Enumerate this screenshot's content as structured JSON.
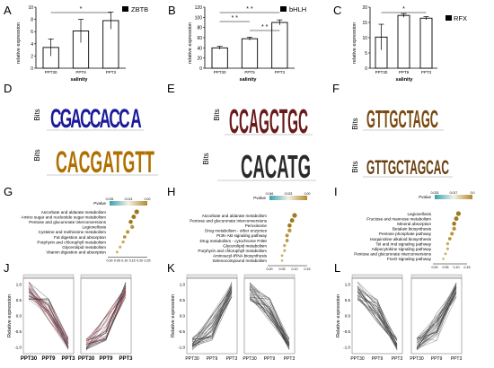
{
  "panels": {
    "A": {
      "letter": "A",
      "gene": "ZBTB",
      "ylabel": "relative expression",
      "xlabel": "salinity",
      "sig": "*",
      "ticks": [
        "0",
        "2",
        "4",
        "6",
        "8",
        "10"
      ],
      "ymax": 10,
      "categories": [
        "PPT30",
        "PPT9",
        "PPT3"
      ],
      "values": [
        3.4,
        6.1,
        7.8
      ],
      "errors": [
        1.4,
        1.9,
        1.4
      ]
    },
    "B": {
      "letter": "B",
      "gene": "bHLH",
      "ylabel": "relative expression",
      "xlabel": "salinity",
      "sig": "* *",
      "ticks": [
        "0",
        "20",
        "40",
        "60",
        "80",
        "100",
        "120"
      ],
      "ymax": 120,
      "categories": [
        "PPT30",
        "PPT9",
        "PPT3"
      ],
      "values": [
        40,
        58,
        90
      ],
      "errors": [
        3,
        3,
        5
      ]
    },
    "C": {
      "letter": "C",
      "gene": "RFX",
      "ylabel": "relative expression",
      "xlabel": "salinity",
      "sig": "*",
      "ticks": [
        "0",
        "5",
        "10",
        "15",
        "20"
      ],
      "ymax": 20,
      "categories": [
        "PPT30",
        "PPT9",
        "PPT3"
      ],
      "values": [
        10.2,
        17.3,
        16.4
      ],
      "errors": [
        4.2,
        0.6,
        0.5
      ]
    },
    "D": {
      "letter": "D",
      "ylabel": "Bits",
      "motif_top": "CGACCACC A",
      "motif_bottom": "CACGATGTT"
    },
    "E": {
      "letter": "E",
      "ylabel": "Bits",
      "motif_top": "CCAGCTGC",
      "motif_bottom": "CACATG"
    },
    "F": {
      "letter": "F",
      "ylabel": "Bits",
      "motif_top": "GTTGCTAGC",
      "motif_bottom": "GTTGCTAGCAC"
    },
    "G": {
      "letter": "G",
      "legend_title": "Pvalue",
      "legend_ticks": [
        "0.025",
        "0.013",
        "0.00"
      ],
      "terms": [
        "Ascorbate and aldarate metabolism",
        "Amino sugar and nucleotide sugar metabolism",
        "Pentose and glucuronate interconversions",
        "Legionellosis",
        "Cysteine and methionine metabolism",
        "Fat digestion and absorption",
        "Porphyrin and chlorophyll metabolism",
        "Glycerolipid metabolism",
        "Vitamin digestion and absorption"
      ],
      "xticks": [
        "0.00",
        "0.05",
        "0.10",
        "0.15",
        "0.20",
        "0.25"
      ]
    },
    "H": {
      "letter": "H",
      "legend_title": "Pvalue",
      "legend_ticks": [
        "0.046",
        "0.023",
        "0.00"
      ],
      "terms": [
        "Ascorbate and aldarate metabolism",
        "Pentose and glucuronate interconversions",
        "Peroxisome",
        "Drug metabolism - other enzymes",
        "PI3K-Akt signaling pathway",
        "Drug metabolism - cytochrome P450",
        "Glycerolipid metabolism",
        "Porphyrin and chlorophyll metabolism",
        "Aminoacyl-tRNA biosynthesis",
        "Selenocompound metabolism"
      ],
      "xticks": [
        "0.00",
        "0.05",
        "0.10",
        "0.15"
      ]
    },
    "I": {
      "letter": "I",
      "legend_title": "Pvalue",
      "legend_ticks": [
        "0.033",
        "0.017",
        "0.0"
      ],
      "terms": [
        "Legionellosis",
        "Fructose and mannose metabolism",
        "Mineral absorption",
        "Betalain biosynthesis",
        "Pentose phosphate pathway",
        "Isoquinoline alkaloid biosynthesis",
        "Tel and Imd signaling pathway",
        "Adipocytokine signaling pathway",
        "Pentose and glucuronate interconversions",
        "FoxO signaling pathway"
      ],
      "xticks": [
        "0.00",
        "0.05",
        "0.10",
        "0.15"
      ]
    },
    "J": {
      "letter": "J",
      "ylabel": "Relative expression",
      "yticks": [
        "1.0",
        "0.5",
        "0.0",
        "-0.5",
        "-1.0"
      ],
      "xticks": [
        "PPT30",
        "PPT9",
        "PPT3"
      ]
    },
    "K": {
      "letter": "K",
      "ylabel": "Relative expression",
      "yticks": [
        "1.0",
        "0.5",
        "0.0",
        "-0.5",
        "-1.0"
      ],
      "xticks": [
        "PPT30",
        "PPT9",
        "PPT3"
      ]
    },
    "L": {
      "letter": "L",
      "ylabel": "Relative expression",
      "yticks": [
        "1.0",
        "0.5",
        "0.0",
        "-0.5",
        "-1.0"
      ],
      "xticks": [
        "PPT30",
        "PPT9",
        "PPT3"
      ]
    }
  },
  "chart_data": [
    {
      "type": "bar",
      "title": "ZBTB",
      "categories": [
        "PPT30",
        "PPT9",
        "PPT3"
      ],
      "values": [
        3.4,
        6.1,
        7.8
      ],
      "xlabel": "salinity",
      "ylabel": "relative expression",
      "ylim": [
        0,
        10
      ]
    },
    {
      "type": "bar",
      "title": "bHLH",
      "categories": [
        "PPT30",
        "PPT9",
        "PPT3"
      ],
      "values": [
        40,
        58,
        90
      ],
      "xlabel": "salinity",
      "ylabel": "relative expression",
      "ylim": [
        0,
        120
      ]
    },
    {
      "type": "bar",
      "title": "RFX",
      "categories": [
        "PPT30",
        "PPT9",
        "PPT3"
      ],
      "values": [
        10.2,
        17.3,
        16.4
      ],
      "xlabel": "salinity",
      "ylabel": "relative expression",
      "ylim": [
        0,
        20
      ]
    }
  ],
  "colors": {
    "bar": "#ffffff",
    "edge": "#000000",
    "dot": "#b5953a",
    "trend_dark": "#333333",
    "trend_red": "#e03050"
  }
}
